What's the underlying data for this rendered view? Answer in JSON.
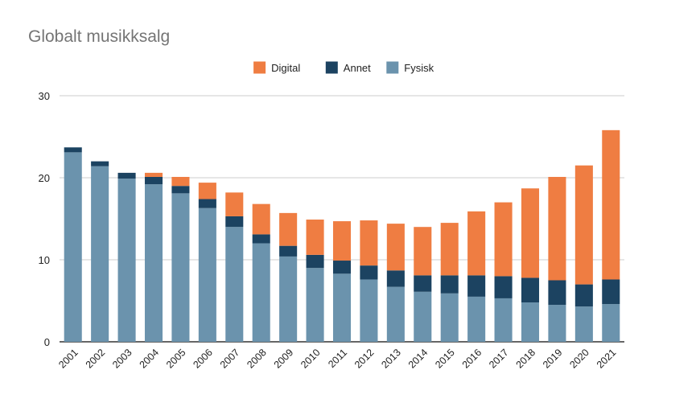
{
  "chart_data": {
    "type": "bar",
    "stacked": true,
    "title": "Globalt musikksalg",
    "xlabel": "",
    "ylabel": "",
    "ylim": [
      0,
      30
    ],
    "yticks": [
      0,
      10,
      20,
      30
    ],
    "grid": true,
    "legend_position": "top-center",
    "categories": [
      "2001",
      "2002",
      "2003",
      "2004",
      "2005",
      "2006",
      "2007",
      "2008",
      "2009",
      "2010",
      "2011",
      "2012",
      "2013",
      "2014",
      "2015",
      "2016",
      "2017",
      "2018",
      "2019",
      "2020",
      "2021"
    ],
    "series": [
      {
        "name": "Fysisk",
        "color": "#6b93ad",
        "values": [
          23.1,
          21.4,
          19.9,
          19.2,
          18.1,
          16.3,
          14.0,
          12.0,
          10.4,
          9.0,
          8.3,
          7.6,
          6.7,
          6.1,
          5.9,
          5.5,
          5.3,
          4.8,
          4.5,
          4.3,
          4.6
        ]
      },
      {
        "name": "Annet",
        "color": "#1c4361",
        "values": [
          0.6,
          0.6,
          0.7,
          0.9,
          0.9,
          1.1,
          1.3,
          1.1,
          1.3,
          1.6,
          1.6,
          1.7,
          2.0,
          2.0,
          2.2,
          2.6,
          2.7,
          3.0,
          3.0,
          2.7,
          3.0
        ]
      },
      {
        "name": "Digital",
        "color": "#ef7d42",
        "values": [
          0.0,
          0.0,
          0.0,
          0.5,
          1.1,
          2.0,
          2.9,
          3.7,
          4.0,
          4.3,
          4.8,
          5.5,
          5.7,
          5.9,
          6.4,
          7.8,
          9.0,
          10.9,
          12.6,
          14.5,
          18.2
        ]
      }
    ],
    "legend_order": [
      "Digital",
      "Annet",
      "Fysisk"
    ]
  },
  "colors": {
    "title": "#757575",
    "axis_text": "#222222",
    "grid": "#cccccc",
    "baseline": "#333333"
  }
}
